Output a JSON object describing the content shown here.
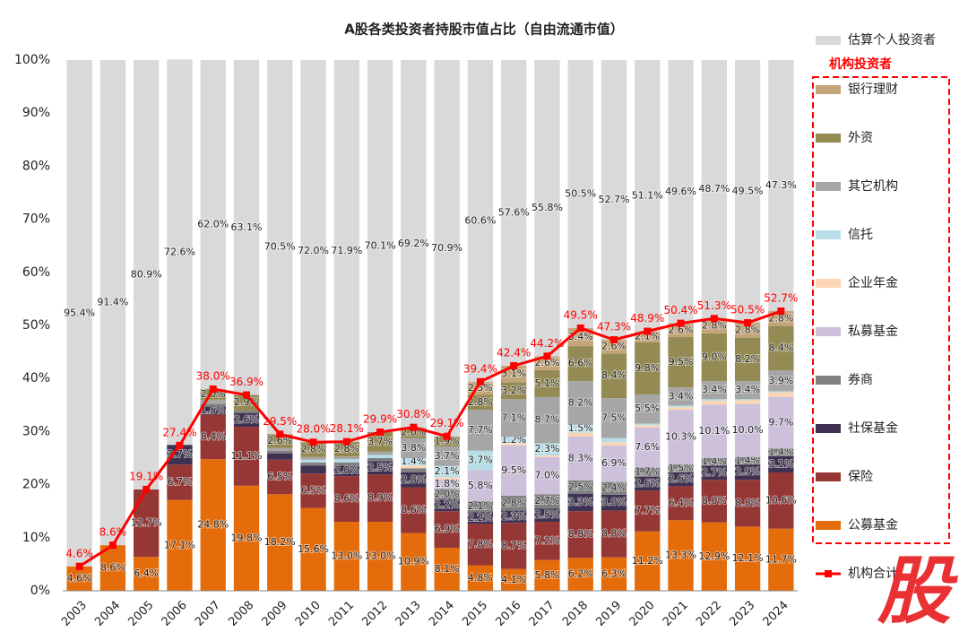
{
  "chart_data": {
    "type": "stacked-bar",
    "title": "A股各类投资者持股市值占比（自由流通市值）",
    "legend_group": "机构投资者",
    "watermark": "股",
    "categories": [
      "2003",
      "2004",
      "2005",
      "2006",
      "2007",
      "2008",
      "2009",
      "2010",
      "2011",
      "2012",
      "2013",
      "2014",
      "2015",
      "2016",
      "2017",
      "2018",
      "2019",
      "2020",
      "2021",
      "2022",
      "2023",
      "2024"
    ],
    "ylim": [
      0,
      100
    ],
    "yticks": [
      {
        "value": 0,
        "label": "0%"
      },
      {
        "value": 10,
        "label": "10%"
      },
      {
        "value": 20,
        "label": "20%"
      },
      {
        "value": 30,
        "label": "30%"
      },
      {
        "value": 40,
        "label": "40%"
      },
      {
        "value": 50,
        "label": "50%"
      },
      {
        "value": 60,
        "label": "60%"
      },
      {
        "value": 70,
        "label": "70%"
      },
      {
        "value": 80,
        "label": "80%"
      },
      {
        "value": 90,
        "label": "90%"
      },
      {
        "value": 100,
        "label": "100%"
      }
    ],
    "grid": false,
    "legend": "right",
    "series": [
      {
        "name": "公募基金",
        "color": "#e46c0a",
        "values": [
          4.6,
          8.6,
          6.4,
          17.1,
          24.8,
          19.8,
          18.2,
          15.6,
          13.0,
          13.0,
          10.9,
          8.1,
          4.8,
          4.1,
          5.8,
          6.2,
          6.3,
          11.2,
          13.3,
          12.9,
          12.1,
          11.7
        ],
        "value_labels": [
          "4.6%",
          "8.6%",
          "6.4%",
          "17.1%",
          "24.8%",
          "19.8%",
          "18.2%",
          "15.6%",
          "13.0%",
          "13.0%",
          "10.9%",
          "8.1%",
          "4.8%",
          "4.1%",
          "5.8%",
          "6.2%",
          "6.3%",
          "11.2%",
          "13.3%",
          "12.9%",
          "12.1%",
          "11.7%"
        ]
      },
      {
        "name": "保险",
        "color": "#953735",
        "values": [
          null,
          null,
          12.7,
          6.7,
          8.4,
          11.1,
          6.5,
          6.5,
          8.6,
          8.9,
          8.6,
          6.9,
          7.8,
          8.7,
          7.2,
          8.8,
          8.8,
          7.7,
          6.4,
          8.0,
          8.8,
          10.6
        ],
        "value_labels": [
          null,
          null,
          "12.7%",
          "6.7%",
          "8.4%",
          "11.1%",
          "6.5%",
          "6.5%",
          "8.6%",
          "8.9%",
          "8.6%",
          "6.9%",
          "7.8%",
          "8.7%",
          "7.2%",
          "8.8%",
          "8.8%",
          "7.7%",
          "6.4%",
          "8.0%",
          "8.8%",
          "10.6%"
        ]
      },
      {
        "name": "社保基金",
        "color": "#3f3151",
        "values": [
          null,
          null,
          null,
          3.7,
          1.5,
          2.6,
          1.2,
          1.5,
          2.0,
          2.5,
          2.8,
          2.2,
          2.2,
          2.3,
          2.5,
          3.3,
          3.0,
          2.6,
          2.6,
          2.7,
          2.9,
          3.1
        ],
        "value_labels": [
          null,
          null,
          null,
          "3.7%",
          "1.5%",
          "2.6%",
          null,
          null,
          "2.0%",
          "2.5%",
          "2.8%",
          "2.2%",
          "2.2%",
          "2.3%",
          "2.5%",
          "3.3%",
          "3.0%",
          "2.6%",
          "2.6%",
          "2.7%",
          "2.9%",
          "3.1%"
        ]
      },
      {
        "name": "券商",
        "color": "#7f7f7f",
        "values": [
          null,
          null,
          null,
          null,
          0.5,
          0.5,
          0.5,
          0.6,
          0.6,
          0.6,
          0.8,
          2.0,
          2.1,
          2.8,
          2.7,
          2.5,
          2.4,
          1.7,
          1.5,
          1.4,
          1.4,
          1.4
        ],
        "value_labels": [
          null,
          null,
          null,
          null,
          null,
          null,
          null,
          null,
          null,
          null,
          null,
          "2.0%",
          "2.1%",
          "2.8%",
          "2.7%",
          "2.5%",
          "2.4%",
          "1.7%",
          "1.5%",
          "1.4%",
          "1.4%",
          "1.4%"
        ]
      },
      {
        "name": "私募基金",
        "color": "#ccc0da",
        "values": [
          null,
          null,
          null,
          null,
          null,
          null,
          null,
          null,
          null,
          null,
          null,
          1.8,
          5.8,
          9.5,
          7.0,
          8.3,
          6.9,
          7.6,
          10.3,
          10.1,
          10.0,
          9.7
        ],
        "value_labels": [
          null,
          null,
          null,
          null,
          null,
          null,
          null,
          null,
          null,
          null,
          null,
          "1.8%",
          "5.8%",
          "9.5%",
          "7.0%",
          "8.3%",
          "6.9%",
          "7.6%",
          "10.3%",
          "10.1%",
          "10.0%",
          "9.7%"
        ]
      },
      {
        "name": "企业年金",
        "color": "#fcd5b5",
        "values": [
          null,
          null,
          null,
          null,
          null,
          null,
          null,
          null,
          null,
          null,
          0.5,
          0.4,
          null,
          0.4,
          0.3,
          0.7,
          0.6,
          0.4,
          0.5,
          0.7,
          0.7,
          0.9
        ]
      },
      {
        "name": "信托",
        "color": "#b7dee8",
        "values": [
          null,
          null,
          null,
          null,
          null,
          null,
          null,
          0.5,
          0.6,
          0.6,
          1.4,
          2.1,
          3.7,
          1.2,
          2.3,
          1.5,
          0.8,
          0.3,
          0.3,
          0.3,
          0.2,
          0.2
        ],
        "value_labels": [
          null,
          null,
          null,
          null,
          null,
          null,
          null,
          null,
          null,
          null,
          "1.4%",
          "2.1%",
          "3.7%",
          "1.2%",
          "2.3%",
          "1.5%",
          null,
          null,
          null,
          null,
          null,
          null
        ]
      },
      {
        "name": "其它机构",
        "color": "#a6a6a6",
        "values": [
          null,
          null,
          null,
          null,
          0.8,
          null,
          0.5,
          0.5,
          0.5,
          0.6,
          3.8,
          3.7,
          7.7,
          7.1,
          8.7,
          8.2,
          7.5,
          5.5,
          3.4,
          3.4,
          3.4,
          3.9
        ],
        "value_labels": [
          null,
          null,
          null,
          null,
          null,
          null,
          null,
          null,
          null,
          null,
          "3.8%",
          "3.7%",
          "7.7%",
          "7.1%",
          "8.7%",
          "8.2%",
          "7.5%",
          "5.5%",
          "3.4%",
          "3.4%",
          "3.4%",
          "3.9%"
        ]
      },
      {
        "name": "外资",
        "color": "#948a54",
        "values": [
          null,
          null,
          null,
          null,
          2.0,
          2.9,
          2.6,
          2.8,
          2.8,
          3.7,
          2.0,
          1.9,
          2.8,
          3.2,
          5.1,
          6.6,
          8.4,
          9.8,
          9.5,
          9.0,
          8.2,
          8.4
        ],
        "value_labels": [
          null,
          null,
          null,
          null,
          "2.0%",
          "2.9%",
          "2.6%",
          "2.8%",
          "2.8%",
          "3.7%",
          "2.0%",
          "1.9%",
          "2.8%",
          "3.2%",
          "5.1%",
          "6.6%",
          "8.4%",
          "9.8%",
          "9.5%",
          "9.0%",
          "8.2%",
          "8.4%"
        ]
      },
      {
        "name": "银行理财",
        "color": "#c4a57a",
        "values": [
          null,
          null,
          null,
          null,
          null,
          null,
          null,
          null,
          null,
          null,
          null,
          null,
          2.5,
          3.1,
          2.6,
          3.4,
          2.6,
          2.1,
          2.6,
          2.8,
          2.8,
          2.8
        ],
        "value_labels": [
          null,
          null,
          null,
          null,
          null,
          null,
          null,
          null,
          null,
          null,
          null,
          null,
          "2.5%",
          "3.1%",
          "2.6%",
          "3.4%",
          "2.6%",
          "2.1%",
          "2.6%",
          "2.8%",
          "2.8%",
          "2.8%"
        ]
      },
      {
        "name": "估算个人投资者",
        "color": "#d9d9d9",
        "values": [
          95.4,
          91.4,
          80.9,
          72.6,
          62.0,
          63.1,
          70.5,
          72.0,
          71.9,
          70.1,
          69.2,
          70.9,
          60.6,
          57.6,
          55.8,
          50.5,
          52.7,
          51.1,
          49.6,
          48.7,
          49.5,
          47.3
        ],
        "value_labels": [
          "95.4%",
          "91.4%",
          "80.9%",
          "72.6%",
          "62.0%",
          "63.1%",
          "70.5%",
          "72.0%",
          "71.9%",
          "70.1%",
          "69.2%",
          "70.9%",
          "60.6%",
          "57.6%",
          "55.8%",
          "50.5%",
          "52.7%",
          "51.1%",
          "49.6%",
          "48.7%",
          "49.5%",
          "47.3%"
        ]
      },
      {
        "name": "机构合计",
        "type": "line",
        "color": "#ff0000",
        "values": [
          4.6,
          8.6,
          19.1,
          27.4,
          38.0,
          36.9,
          29.5,
          28.0,
          28.1,
          29.9,
          30.8,
          29.1,
          39.4,
          42.4,
          44.2,
          49.5,
          47.3,
          48.9,
          50.4,
          51.3,
          50.5,
          52.7
        ],
        "value_labels": [
          "4.6%",
          "8.6%",
          "19.1%",
          "27.4%",
          "38.0%",
          "36.9%",
          "29.5%",
          "28.0%",
          "28.1%",
          "29.9%",
          "30.8%",
          "29.1%",
          "39.4%",
          "42.4%",
          "44.2%",
          "49.5%",
          "47.3%",
          "48.9%",
          "50.4%",
          "51.3%",
          "50.5%",
          "52.7%"
        ]
      }
    ]
  }
}
